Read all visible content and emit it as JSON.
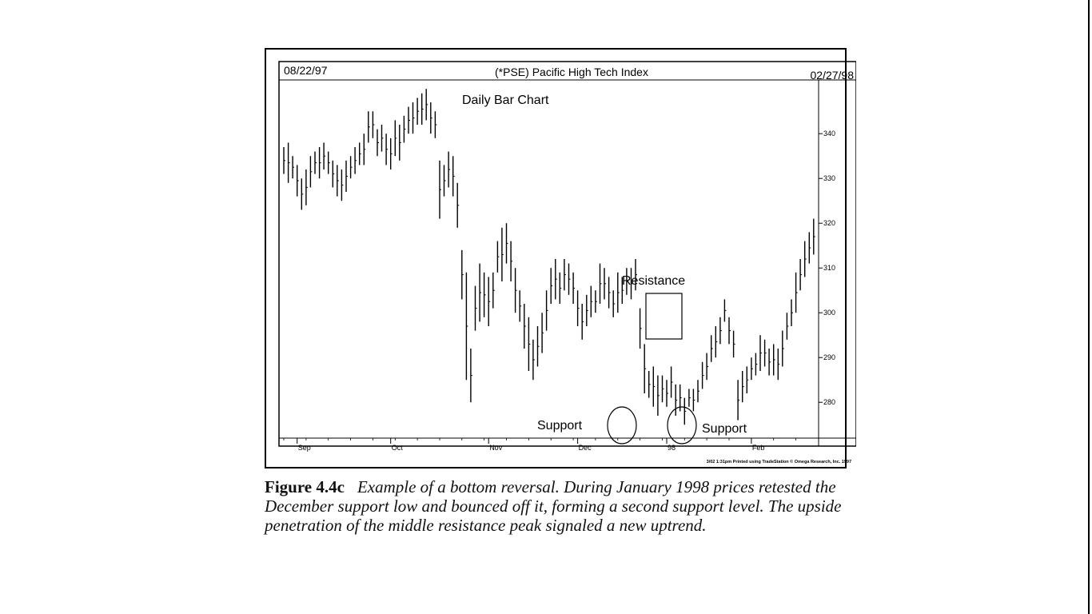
{
  "chart_data": {
    "type": "bar",
    "subtype": "ohlc-daily-bar",
    "title": "(*PSE) Pacific High Tech Index",
    "subtitle": "Daily Bar Chart",
    "start_date": "08/22/97",
    "end_date": "02/27/98",
    "y_ticks": [
      340,
      330,
      320,
      310,
      300,
      290,
      280
    ],
    "ylim": [
      272,
      352
    ],
    "x_ticks": [
      {
        "label": "Sep",
        "bar": 3
      },
      {
        "label": "Oct",
        "bar": 24
      },
      {
        "label": "Nov",
        "bar": 46
      },
      {
        "label": "Dec",
        "bar": 66
      },
      {
        "label": "98",
        "bar": 86
      },
      {
        "label": "Feb",
        "bar": 105
      }
    ],
    "bars": [
      [
        337,
        331
      ],
      [
        338,
        329
      ],
      [
        335,
        330
      ],
      [
        333,
        326
      ],
      [
        330,
        323
      ],
      [
        332,
        324
      ],
      [
        335,
        328
      ],
      [
        336,
        331
      ],
      [
        337,
        330
      ],
      [
        338,
        332
      ],
      [
        336,
        331
      ],
      [
        334,
        328
      ],
      [
        333,
        326
      ],
      [
        332,
        325
      ],
      [
        334,
        327
      ],
      [
        335,
        330
      ],
      [
        337,
        331
      ],
      [
        338,
        333
      ],
      [
        340,
        333
      ],
      [
        345,
        338
      ],
      [
        345,
        339
      ],
      [
        341,
        335
      ],
      [
        342,
        336
      ],
      [
        340,
        333
      ],
      [
        339,
        332
      ],
      [
        343,
        335
      ],
      [
        342,
        334
      ],
      [
        344,
        338
      ],
      [
        346,
        340
      ],
      [
        347,
        340
      ],
      [
        348,
        342
      ],
      [
        349,
        342
      ],
      [
        350,
        343
      ],
      [
        347,
        340
      ],
      [
        345,
        339
      ],
      [
        334,
        321
      ],
      [
        333,
        326
      ],
      [
        336,
        328
      ],
      [
        335,
        326
      ],
      [
        329,
        319
      ],
      [
        314,
        303
      ],
      [
        309,
        285
      ],
      [
        292,
        280
      ],
      [
        306,
        296
      ],
      [
        311,
        298
      ],
      [
        309,
        299
      ],
      [
        308,
        297
      ],
      [
        309,
        301
      ],
      [
        316,
        309
      ],
      [
        319,
        307
      ],
      [
        320,
        311
      ],
      [
        316,
        307
      ],
      [
        310,
        300
      ],
      [
        305,
        298
      ],
      [
        302,
        292
      ],
      [
        299,
        287
      ],
      [
        294,
        285
      ],
      [
        297,
        288
      ],
      [
        300,
        291
      ],
      [
        305,
        296
      ],
      [
        310,
        302
      ],
      [
        312,
        303
      ],
      [
        309,
        302
      ],
      [
        312,
        305
      ],
      [
        311,
        304
      ],
      [
        309,
        302
      ],
      [
        305,
        297
      ],
      [
        302,
        294
      ],
      [
        304,
        297
      ],
      [
        306,
        299
      ],
      [
        305,
        300
      ],
      [
        311,
        302
      ],
      [
        310,
        303
      ],
      [
        308,
        301
      ],
      [
        305,
        299
      ],
      [
        309,
        300
      ],
      [
        308,
        302
      ],
      [
        310,
        304
      ],
      [
        310,
        303
      ],
      [
        312,
        305
      ],
      [
        301,
        292
      ],
      [
        293,
        282
      ],
      [
        287,
        281
      ],
      [
        288,
        279
      ],
      [
        286,
        277
      ],
      [
        286,
        280
      ],
      [
        285,
        279
      ],
      [
        288,
        281
      ],
      [
        284,
        277
      ],
      [
        284,
        278
      ],
      [
        281,
        275
      ],
      [
        283,
        279
      ],
      [
        283,
        278
      ],
      [
        285,
        280
      ],
      [
        289,
        283
      ],
      [
        291,
        285
      ],
      [
        295,
        289
      ],
      [
        297,
        290
      ],
      [
        299,
        293
      ],
      [
        303,
        298
      ],
      [
        299,
        293
      ],
      [
        296,
        290
      ],
      [
        285,
        276
      ],
      [
        287,
        280
      ],
      [
        288,
        282
      ],
      [
        290,
        285
      ],
      [
        291,
        286
      ],
      [
        295,
        287
      ],
      [
        294,
        288
      ],
      [
        292,
        286
      ],
      [
        293,
        286
      ],
      [
        292,
        285
      ],
      [
        296,
        288
      ],
      [
        300,
        294
      ],
      [
        303,
        297
      ],
      [
        309,
        300
      ],
      [
        312,
        305
      ],
      [
        316,
        308
      ],
      [
        318,
        311
      ],
      [
        321,
        313
      ]
    ],
    "annotations": [
      {
        "text": "Resistance",
        "kind": "box"
      },
      {
        "text": "Support",
        "kind": "ellipse"
      },
      {
        "text": "Support",
        "kind": "ellipse"
      }
    ],
    "footer_note": "3/02 1:31pm Printed using TradeStation © Omega Research, Inc. 1997",
    "grid": false
  },
  "caption": {
    "label": "Figure 4.4c",
    "text": "Example of a bottom reversal. During January 1998 prices retested the December support low and bounced off it, forming a second support level. The upside penetration of the middle resistance peak signaled a new uptrend."
  },
  "colors": {
    "ink": "#000000",
    "paper": "#ffffff"
  }
}
